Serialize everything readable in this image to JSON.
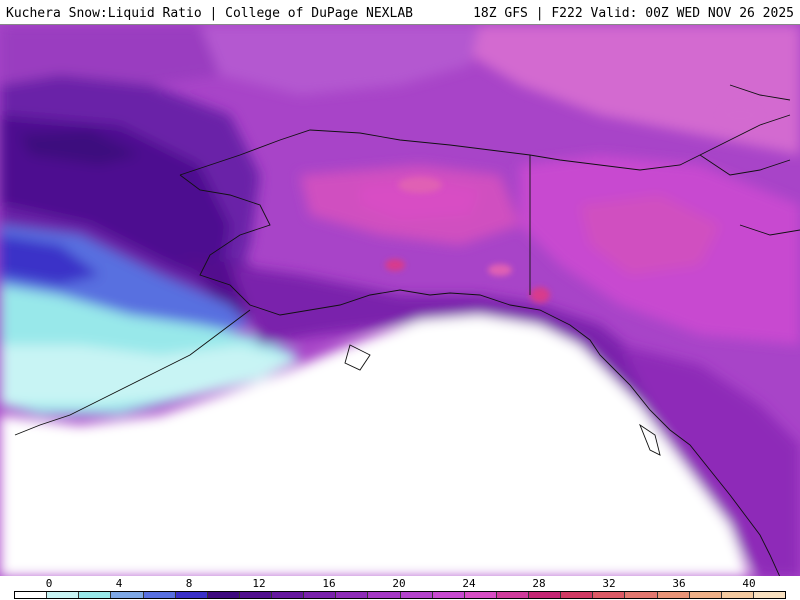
{
  "header": {
    "title": "Kuchera Snow:Liquid Ratio | College of DuPage NEXLAB",
    "run_info": "18Z GFS | F222 Valid: 00Z WED NOV 26 2025"
  },
  "colors": {
    "palette": [
      "#ffffff",
      "#c8f4f4",
      "#a0e8ec",
      "#7eaee8",
      "#5c82e0",
      "#3c3ed0",
      "#4a0a8a",
      "#5a129a",
      "#6a20a8",
      "#7e30b6",
      "#9238c0",
      "#a844c8",
      "#be50d0",
      "#d058c8",
      "#e060b4",
      "#d83a8c",
      "#c82a60",
      "#d84a5c",
      "#e06e68",
      "#e8907a",
      "#f0b090",
      "#f8d0b0",
      "#fce8d4"
    ],
    "legend_colors": [
      "#ffffff",
      "#c8f4f4",
      "#98e8ea",
      "#7ea8e6",
      "#5870e0",
      "#3a30c8",
      "#3e0a7e",
      "#52108e",
      "#66189e",
      "#7a22ac",
      "#8e2cb8",
      "#a438c4",
      "#b444cc",
      "#c84ad0",
      "#d84ec4",
      "#d03c9c",
      "#c42674",
      "#d03a64",
      "#dc5a66",
      "#e27870",
      "#e89478",
      "#eeb088",
      "#f4caa0",
      "#f8e0c0"
    ]
  },
  "legend": {
    "ticks": [
      "0",
      "4",
      "8",
      "12",
      "16",
      "20",
      "24",
      "28",
      "32",
      "36",
      "40"
    ]
  }
}
